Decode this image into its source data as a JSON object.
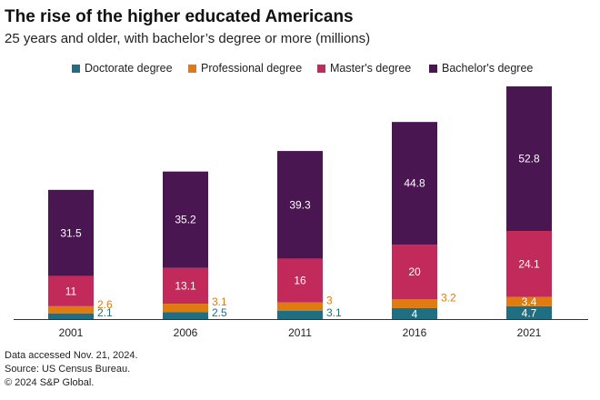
{
  "title": "The rise of the higher educated Americans",
  "subtitle": "25 years and older, with bachelor’s degree or more (millions)",
  "notes": [
    "Data accessed Nov. 21, 2024.",
    "Source: US Census Bureau.",
    "© 2024 S&P Global."
  ],
  "colors": {
    "doctorate": "#1f6e82",
    "professional": "#e07b10",
    "masters": "#c22a5b",
    "bachelors": "#4a1652",
    "axis": "#333333",
    "bar_label_inside": "#ffffff"
  },
  "chart_data": {
    "type": "bar",
    "stacked": true,
    "categories": [
      "2001",
      "2006",
      "2011",
      "2016",
      "2021"
    ],
    "series": [
      {
        "key": "doctorate",
        "name": "Doctorate degree",
        "values": [
          2.1,
          2.5,
          3.1,
          4,
          4.7
        ]
      },
      {
        "key": "professional",
        "name": "Professional degree",
        "values": [
          2.6,
          3.1,
          3,
          3.2,
          3.4
        ]
      },
      {
        "key": "masters",
        "name": "Master's degree",
        "values": [
          11,
          13.1,
          16,
          20,
          24.1
        ]
      },
      {
        "key": "bachelors",
        "name": "Bachelor's degree",
        "values": [
          31.5,
          35.2,
          39.3,
          44.8,
          52.8
        ]
      }
    ],
    "legend_position": "top",
    "grid": false,
    "ylim": [
      0,
      86
    ]
  }
}
